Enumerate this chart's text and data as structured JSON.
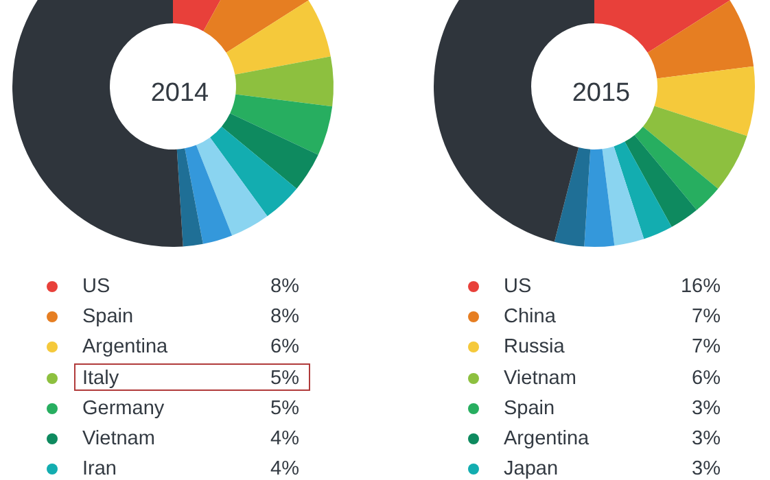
{
  "chart_data": [
    {
      "type": "donut",
      "title": "2014",
      "legend": "bottom",
      "categories": [
        "US",
        "Spain",
        "Argentina",
        "Italy",
        "Germany",
        "Vietnam",
        "Iran",
        null,
        null,
        null,
        null
      ],
      "values": [
        8,
        8,
        6,
        5,
        5,
        4,
        4,
        4,
        3,
        2,
        51
      ],
      "value_labels": [
        "8%",
        "8%",
        "6%",
        "5%",
        "5%",
        "4%",
        "4%",
        null,
        null,
        null,
        null
      ],
      "colors": [
        "#e8403a",
        "#e67e22",
        "#f5c93b",
        "#8dc03f",
        "#27ae60",
        "#0e8a5f",
        "#13adb0",
        "#8ad4f0",
        "#3498db",
        "#1f6f96",
        "#2f353c"
      ]
    },
    {
      "type": "donut",
      "title": "2015",
      "legend": "bottom",
      "categories": [
        "US",
        "China",
        "Russia",
        "Vietnam",
        "Spain",
        "Argentina",
        "Japan",
        null,
        null,
        null,
        null
      ],
      "values": [
        16,
        7,
        7,
        6,
        3,
        3,
        3,
        3,
        3,
        3,
        46
      ],
      "value_labels": [
        "16%",
        "7%",
        "7%",
        "6%",
        "3%",
        "3%",
        "3%",
        null,
        null,
        null,
        null
      ],
      "colors": [
        "#e8403a",
        "#e67e22",
        "#f5c93b",
        "#8dc03f",
        "#27ae60",
        "#0e8a5f",
        "#13adb0",
        "#8ad4f0",
        "#3498db",
        "#1f6f96",
        "#2f353c"
      ]
    }
  ]
}
